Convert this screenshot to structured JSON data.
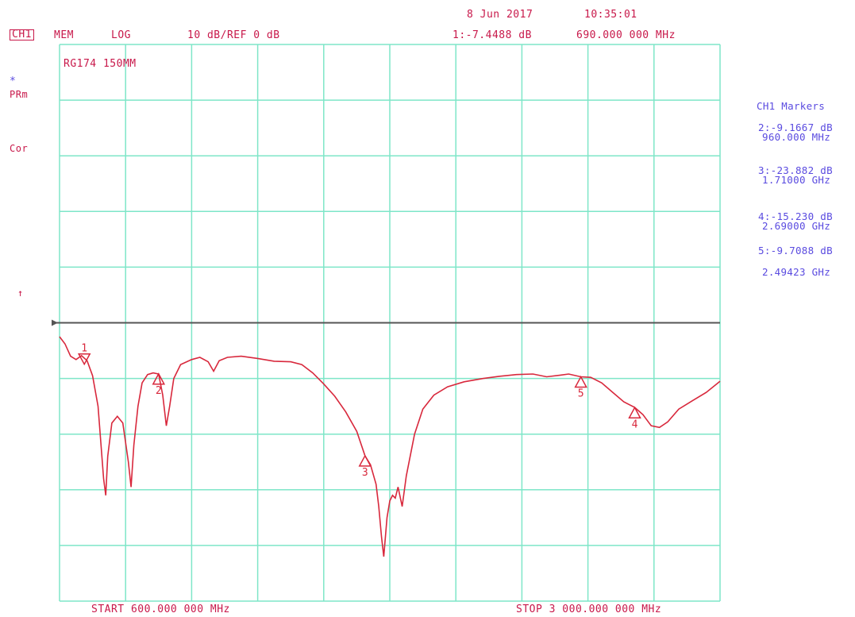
{
  "header": {
    "date": "8 Jun 2017",
    "time": "10:35:01",
    "channel": "CH1",
    "mode": "MEM",
    "format": "LOG",
    "scale": "10 dB/REF 0 dB",
    "marker_active": "1:-7.4488 dB",
    "marker_active_freq": "690.000 000 MHz",
    "trace_title": "RG174 150MM"
  },
  "left_annotations": {
    "star": "*",
    "prm": "PRm",
    "cor": "Cor",
    "arrow": "↑"
  },
  "markers_panel": {
    "title": "CH1 Markers",
    "m2_val": "2:-9.1667 dB",
    "m2_freq": "960.000 MHz",
    "m3_val": "3:-23.882 dB",
    "m3_freq": "1.71000 GHz",
    "m4_val": "4:-15.230 dB",
    "m4_freq": "2.69000 GHz",
    "m5_val": "5:-9.7088 dB",
    "m5_freq": "2.49423 GHz"
  },
  "footer": {
    "start": "START 600.000 000 MHz",
    "stop": "STOP 3 000.000 000 MHz"
  },
  "colors": {
    "grid": "#7ee6c8",
    "trace": "#d8283c",
    "ref_line": "#555555",
    "text": "#c8184a",
    "marker_text": "#5a4be0"
  },
  "chart_data": {
    "type": "line",
    "xlabel": "",
    "ylabel": "",
    "title": "RG174 150MM",
    "x_unit": "MHz",
    "y_unit": "dB",
    "xlim": [
      600,
      3000
    ],
    "ylim": [
      -50,
      50
    ],
    "reference_level": 0,
    "grid": true,
    "divisions": {
      "x": 10,
      "y": 10
    },
    "series": [
      {
        "values": [
          [
            600,
            -2.5
          ],
          [
            620,
            -3.8
          ],
          [
            640,
            -6.0
          ],
          [
            660,
            -6.6
          ],
          [
            680,
            -5.9
          ],
          [
            700,
            -6.8
          ],
          [
            720,
            -9.5
          ],
          [
            740,
            -15.0
          ],
          [
            760,
            -28.0
          ],
          [
            768,
            -31.0
          ],
          [
            775,
            -24.0
          ],
          [
            790,
            -18.0
          ],
          [
            810,
            -16.8
          ],
          [
            830,
            -18.0
          ],
          [
            850,
            -25.0
          ],
          [
            860,
            -29.5
          ],
          [
            870,
            -22.0
          ],
          [
            885,
            -15.0
          ],
          [
            900,
            -10.8
          ],
          [
            920,
            -9.3
          ],
          [
            940,
            -9.0
          ],
          [
            960,
            -9.2
          ],
          [
            975,
            -13.0
          ],
          [
            988,
            -18.5
          ],
          [
            1000,
            -15.0
          ],
          [
            1015,
            -10.0
          ],
          [
            1040,
            -7.5
          ],
          [
            1080,
            -6.6
          ],
          [
            1110,
            -6.2
          ],
          [
            1140,
            -7.0
          ],
          [
            1160,
            -8.7
          ],
          [
            1180,
            -6.8
          ],
          [
            1210,
            -6.2
          ],
          [
            1260,
            -6.0
          ],
          [
            1320,
            -6.4
          ],
          [
            1380,
            -6.9
          ],
          [
            1440,
            -7.0
          ],
          [
            1480,
            -7.5
          ],
          [
            1520,
            -9.0
          ],
          [
            1560,
            -11.0
          ],
          [
            1600,
            -13.2
          ],
          [
            1640,
            -16.0
          ],
          [
            1680,
            -19.5
          ],
          [
            1710,
            -23.9
          ],
          [
            1730,
            -25.5
          ],
          [
            1750,
            -29.0
          ],
          [
            1760,
            -33.0
          ],
          [
            1770,
            -38.5
          ],
          [
            1778,
            -42.0
          ],
          [
            1790,
            -35.0
          ],
          [
            1800,
            -32.0
          ],
          [
            1810,
            -31.0
          ],
          [
            1820,
            -31.5
          ],
          [
            1830,
            -29.5
          ],
          [
            1845,
            -33.0
          ],
          [
            1860,
            -27.5
          ],
          [
            1890,
            -20.0
          ],
          [
            1920,
            -15.5
          ],
          [
            1960,
            -13.0
          ],
          [
            2010,
            -11.5
          ],
          [
            2070,
            -10.6
          ],
          [
            2140,
            -10.0
          ],
          [
            2200,
            -9.6
          ],
          [
            2260,
            -9.3
          ],
          [
            2320,
            -9.2
          ],
          [
            2370,
            -9.7
          ],
          [
            2420,
            -9.4
          ],
          [
            2450,
            -9.2
          ],
          [
            2494,
            -9.7
          ],
          [
            2530,
            -9.8
          ],
          [
            2570,
            -10.8
          ],
          [
            2610,
            -12.5
          ],
          [
            2650,
            -14.2
          ],
          [
            2690,
            -15.2
          ],
          [
            2720,
            -16.5
          ],
          [
            2750,
            -18.5
          ],
          [
            2780,
            -18.8
          ],
          [
            2810,
            -17.8
          ],
          [
            2850,
            -15.5
          ],
          [
            2900,
            -14.0
          ],
          [
            2950,
            -12.5
          ],
          [
            3000,
            -10.5
          ]
        ]
      }
    ],
    "markers": [
      {
        "id": "1",
        "x": 690,
        "y": -7.4488,
        "direction": "down"
      },
      {
        "id": "2",
        "x": 960,
        "y": -9.1667,
        "direction": "up"
      },
      {
        "id": "3",
        "x": 1710,
        "y": -23.882,
        "direction": "up"
      },
      {
        "id": "4",
        "x": 2690,
        "y": -15.23,
        "direction": "up"
      },
      {
        "id": "5",
        "x": 2494.23,
        "y": -9.7088,
        "direction": "up"
      }
    ]
  }
}
